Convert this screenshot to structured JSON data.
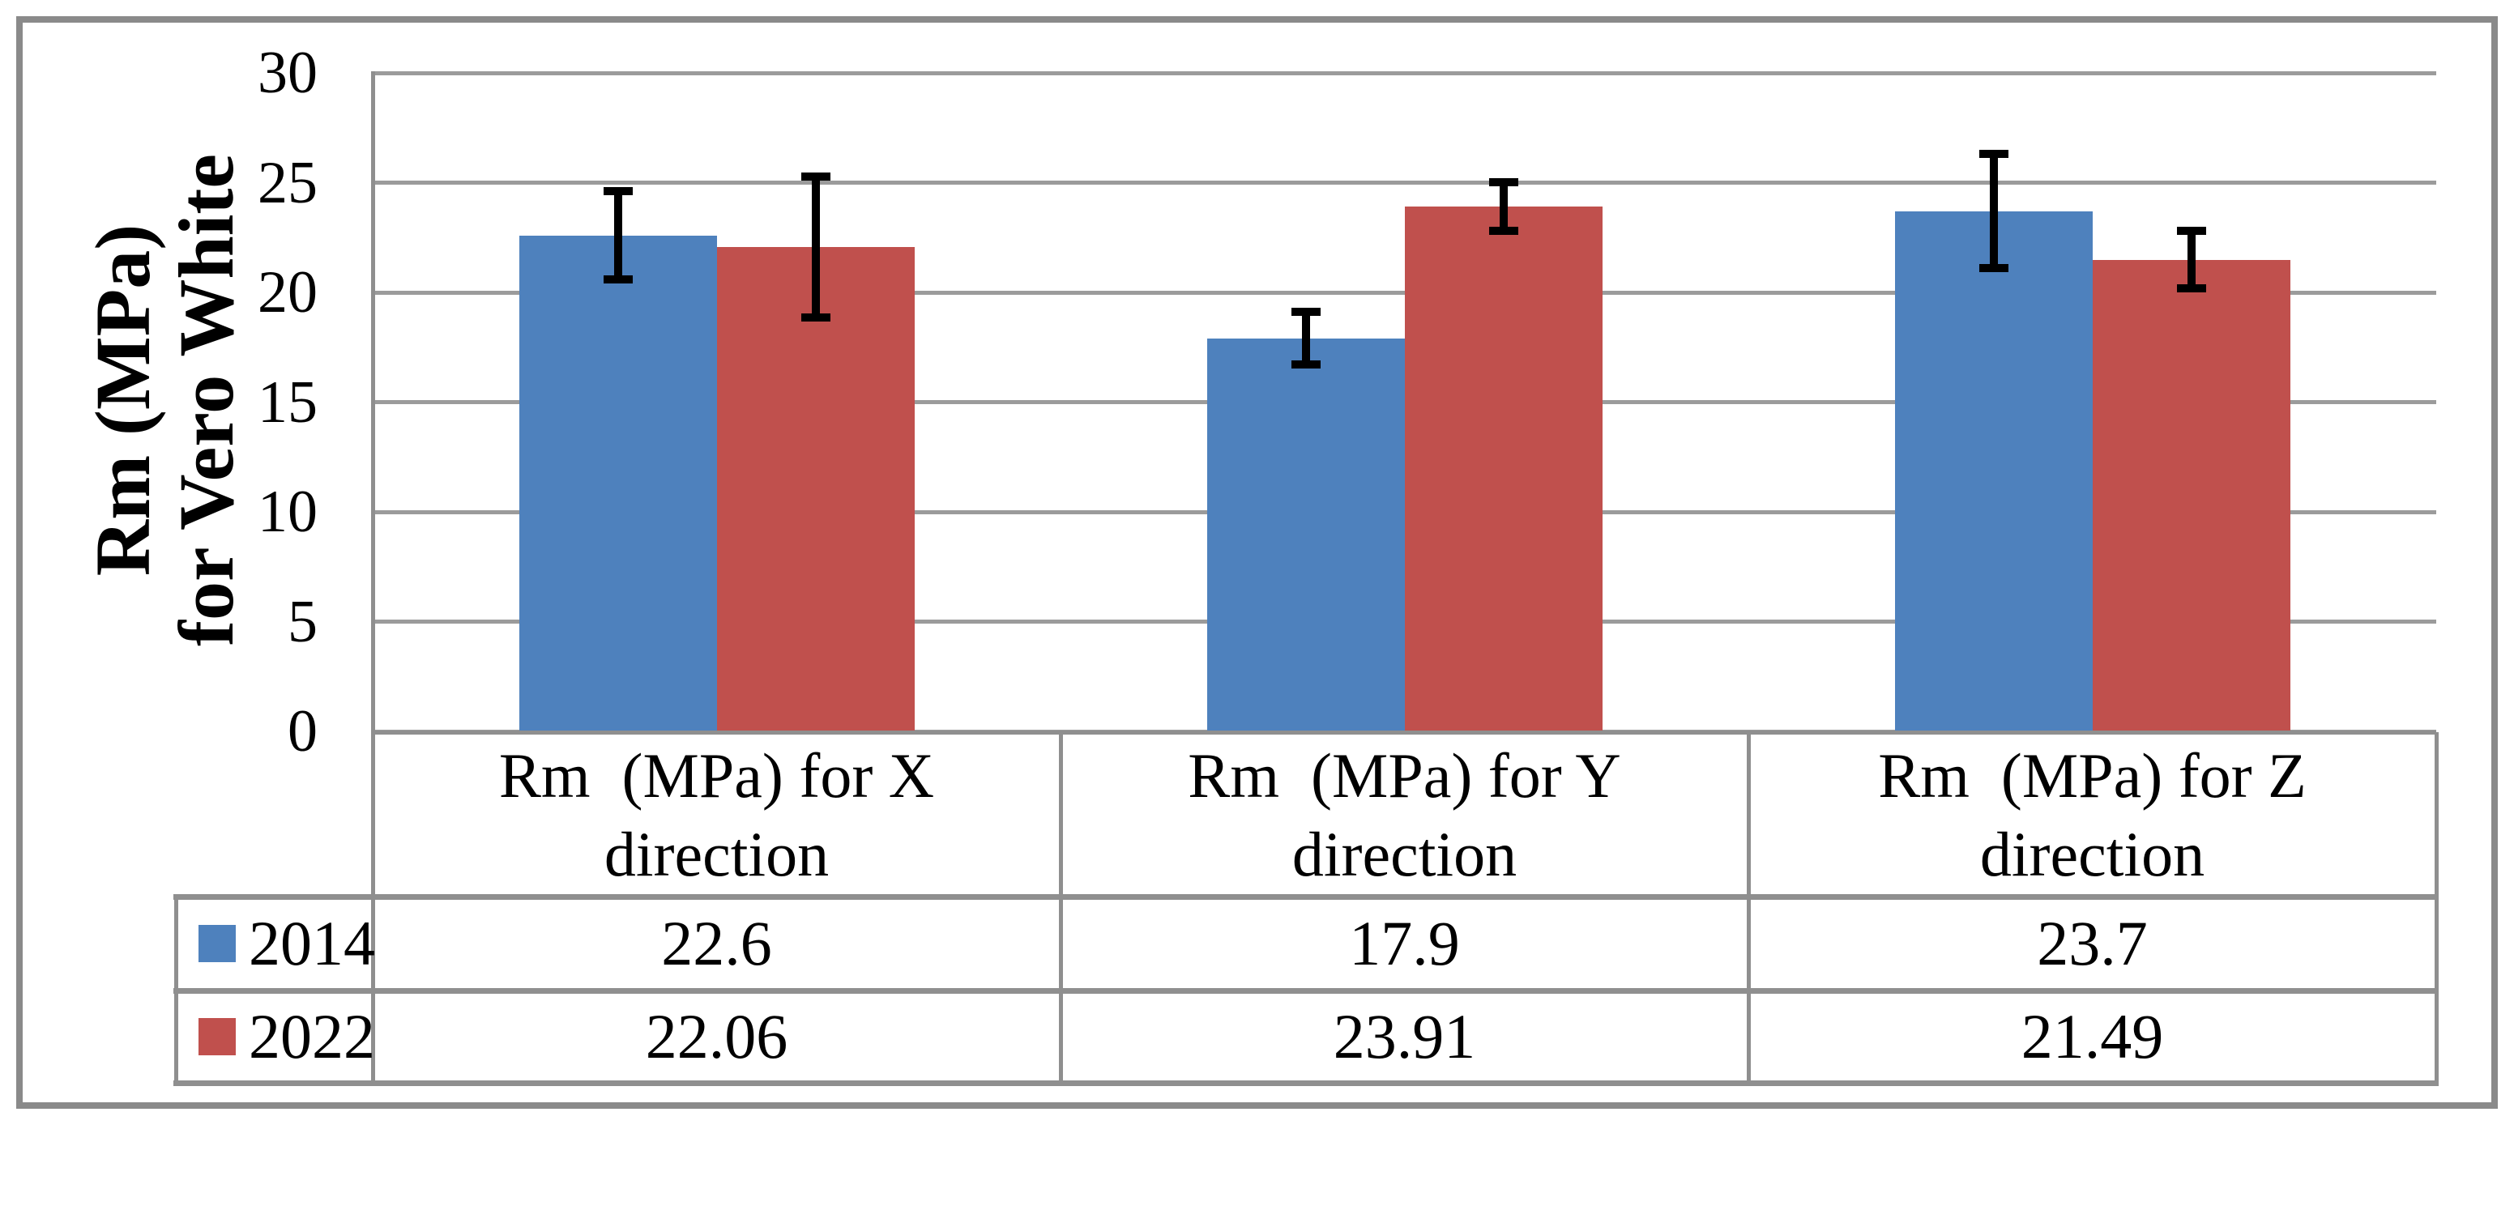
{
  "figure": {
    "background": "#FFFFFF",
    "outer_border_color": "#8A8A8A",
    "gridline_color": "#9B9B9B",
    "axis_line_color": "#8F8F8F",
    "error_bar_color": "#000000",
    "y_axis_title": "Rm (MPa)\nfor Vero White"
  },
  "chart_data": {
    "type": "bar",
    "title": "",
    "categories": [
      "Rm  (MPa) for X\ndirection",
      "Rm  (MPa) for Y\ndirection",
      "Rm  (MPa) for Z\ndirection"
    ],
    "series": [
      {
        "name": "2014",
        "color": "#4E81BD",
        "values": [
          22.6,
          17.9,
          23.7
        ],
        "error_bars": [
          2.0,
          1.2,
          2.6
        ]
      },
      {
        "name": "2022",
        "color": "#C0504D",
        "values": [
          22.06,
          23.91,
          21.49
        ],
        "error_bars": [
          3.2,
          1.1,
          1.3
        ]
      }
    ],
    "value_labels": [
      [
        "22.6",
        "17.9",
        "23.7"
      ],
      [
        "22.06",
        "23.91",
        "21.49"
      ]
    ],
    "ylabel": "Rm (MPa)\nfor Vero White",
    "xlabel": "",
    "ylim": [
      0,
      30
    ],
    "ytick_step": 5,
    "yticks": [
      "0",
      "5",
      "10",
      "15",
      "20",
      "25",
      "30"
    ],
    "grid": true,
    "legend_position": "table-left",
    "data_table_shown": true
  }
}
